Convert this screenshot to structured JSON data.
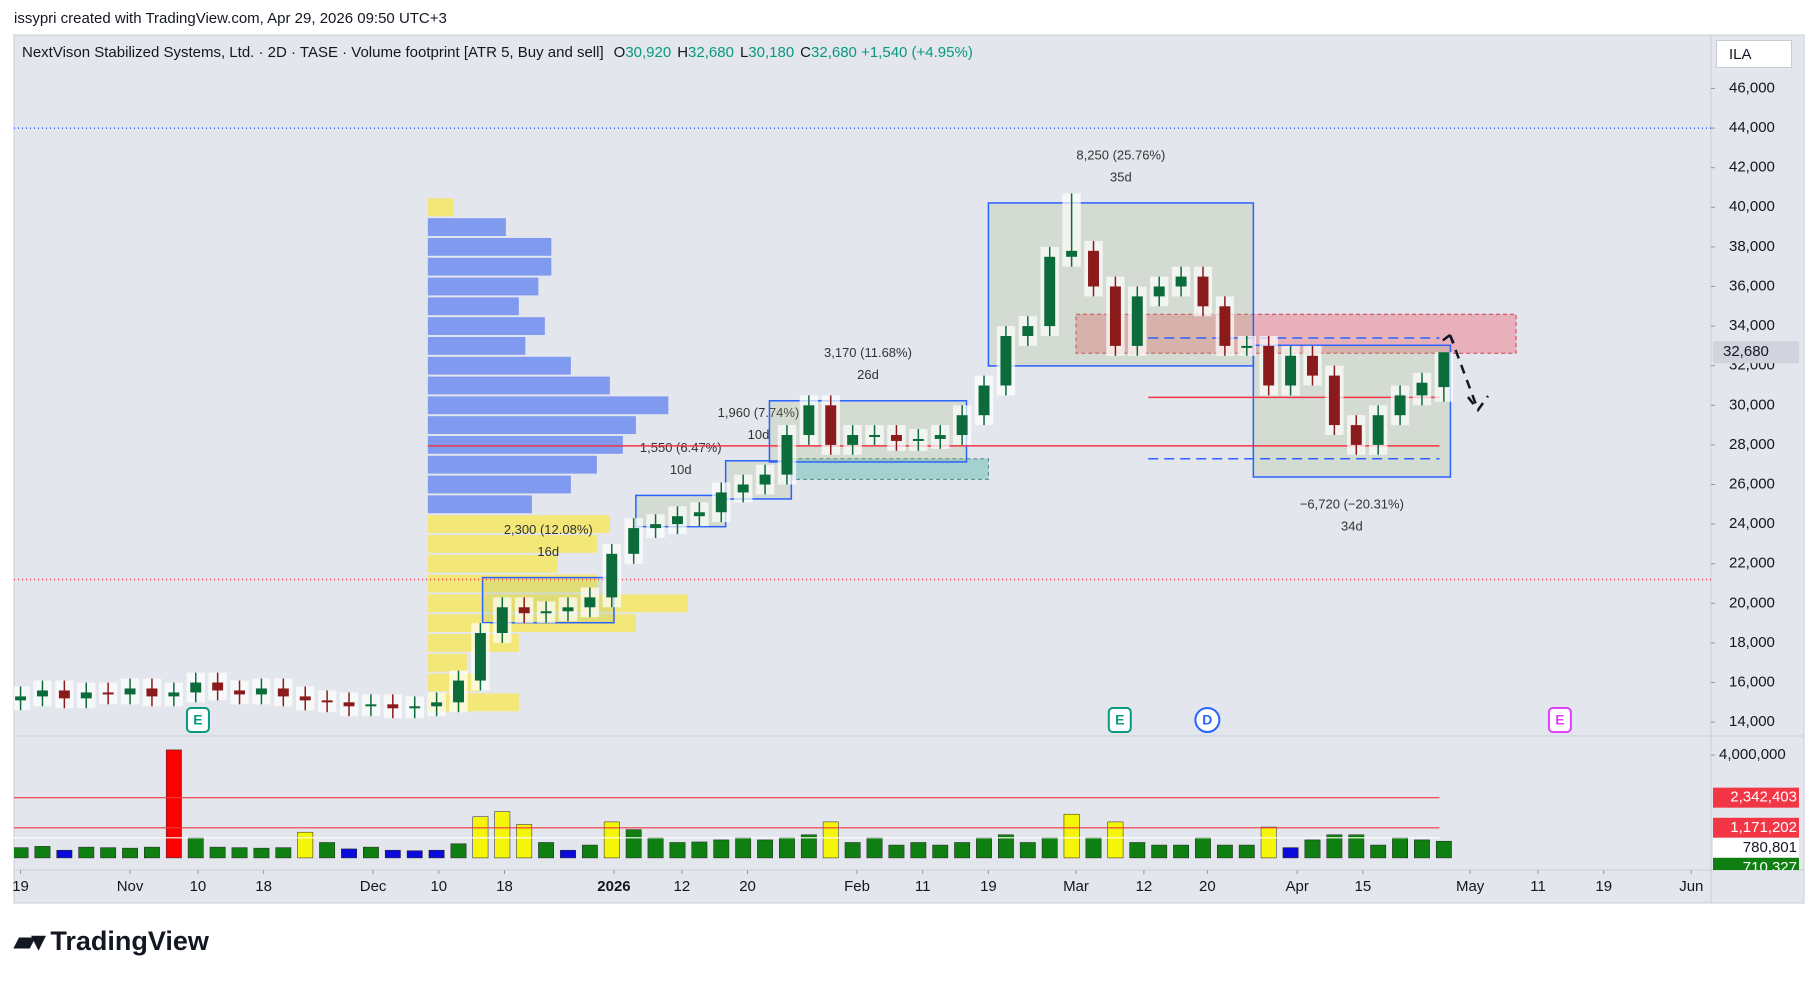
{
  "header": {
    "credit": "issypri created with TradingView.com, Apr 29, 2026 09:50 UTC+3",
    "logo": "TradingView"
  },
  "chart_data": {
    "type": "candlestick",
    "title": "NextVison Stabilized Systems, Ltd. · 2D · TASE · Volume footprint [ATR 5, Buy and sell]",
    "ohlc": [
      {
        "label": "O",
        "value": 30920,
        "text": "30,920"
      },
      {
        "label": "H",
        "value": 32680,
        "text": "32,680"
      },
      {
        "label": "L",
        "value": 30180,
        "text": "30,180"
      },
      {
        "label": "C",
        "value": 32680,
        "text": "32,680"
      }
    ],
    "change": "+1,540 (+4.95%)",
    "currency": "ILA",
    "last_price_label": "32,680",
    "up_color": "#0b6b3a",
    "down_color": "#8b1a1a",
    "candles": {
      "open": [
        15100,
        15300,
        15600,
        15200,
        15500,
        15400,
        15700,
        15300,
        15500,
        16000,
        15600,
        15400,
        15700,
        15300,
        15100,
        15000,
        14800,
        14900,
        14700,
        14800,
        15000,
        16100,
        18500,
        19800,
        19500,
        19600,
        19800,
        20300,
        22500,
        23800,
        24000,
        24400,
        24600,
        25600,
        26000,
        26500,
        28500,
        30000,
        28000,
        28500,
        28500,
        28200,
        28300,
        28500,
        29500,
        31000,
        33500,
        34000,
        37500,
        37800,
        36000,
        33000,
        35500,
        36000,
        36500,
        35000,
        33000,
        33000,
        31000,
        32500,
        31500,
        29000,
        28000,
        29500,
        30500,
        30920
      ],
      "high": [
        15800,
        16100,
        16100,
        16000,
        16000,
        16200,
        16200,
        16000,
        16500,
        16500,
        16100,
        16200,
        16200,
        15800,
        15600,
        15500,
        15400,
        15400,
        15300,
        15500,
        16600,
        19000,
        20300,
        20300,
        20100,
        20300,
        20800,
        23000,
        24300,
        24500,
        24900,
        25100,
        26100,
        26500,
        27000,
        29000,
        30500,
        30500,
        29000,
        29000,
        29000,
        28800,
        29000,
        30000,
        31500,
        34000,
        34500,
        38000,
        40700,
        38300,
        36500,
        36000,
        36500,
        37000,
        37000,
        35500,
        33500,
        33500,
        33000,
        33000,
        32000,
        29500,
        30000,
        31000,
        31640,
        32680
      ],
      "low": [
        14600,
        14800,
        14700,
        14700,
        14900,
        14900,
        14800,
        14800,
        15000,
        15100,
        14900,
        14900,
        14800,
        14600,
        14500,
        14300,
        14300,
        14200,
        14200,
        14300,
        14500,
        15600,
        18000,
        19000,
        19000,
        19100,
        19300,
        19800,
        22000,
        23300,
        23500,
        23900,
        24100,
        25100,
        25500,
        26000,
        28000,
        27500,
        27500,
        28000,
        27700,
        27700,
        27800,
        28000,
        29000,
        30500,
        33000,
        33500,
        37000,
        35500,
        32500,
        32500,
        35000,
        35500,
        34500,
        32500,
        32500,
        30500,
        30500,
        31000,
        28500,
        27500,
        27500,
        29000,
        30000,
        30180
      ],
      "close": [
        15300,
        15600,
        15200,
        15500,
        15400,
        15700,
        15300,
        15500,
        16000,
        15600,
        15400,
        15700,
        15300,
        15100,
        15000,
        14800,
        14900,
        14700,
        14800,
        15000,
        16100,
        18500,
        19800,
        19500,
        19600,
        19800,
        20300,
        22500,
        23800,
        24000,
        24400,
        24600,
        25600,
        26000,
        26500,
        28500,
        30000,
        28000,
        28500,
        28500,
        28200,
        28300,
        28500,
        29500,
        31000,
        33500,
        34000,
        37500,
        37800,
        36000,
        33000,
        35500,
        36000,
        36500,
        35000,
        33000,
        33000,
        31000,
        32500,
        31500,
        29000,
        28000,
        29500,
        30500,
        31140,
        32680
      ]
    },
    "volume": [
      400000,
      450000,
      300000,
      420000,
      400000,
      380000,
      420000,
      4200000,
      800000,
      420000,
      400000,
      380000,
      400000,
      1000000,
      600000,
      350000,
      420000,
      300000,
      280000,
      300000,
      550000,
      1600000,
      1800000,
      1300000,
      600000,
      300000,
      500000,
      1400000,
      1100000,
      800000,
      600000,
      620000,
      700000,
      800000,
      700000,
      800000,
      900000,
      1400000,
      600000,
      800000,
      500000,
      600000,
      500000,
      600000,
      800000,
      900000,
      600000,
      800000,
      1700000,
      800000,
      1400000,
      600000,
      500000,
      500000,
      800000,
      500000,
      500000,
      1200000,
      400000,
      700000,
      900000,
      900000,
      500000,
      800000,
      700000,
      650000
    ],
    "volume_colors": [
      "#0f7f12",
      "#0f7f12",
      "#0a0adc",
      "#0f7f12",
      "#0f7f12",
      "#0f7f12",
      "#0f7f12",
      "#ff0000",
      "#0f7f12",
      "#0f7f12",
      "#0f7f12",
      "#0f7f12",
      "#0f7f12",
      "#f5f50a",
      "#0f7f12",
      "#0a0adc",
      "#0f7f12",
      "#0a0adc",
      "#0a0adc",
      "#0a0adc",
      "#0f7f12",
      "#f5f50a",
      "#f5f50a",
      "#f5f50a",
      "#0f7f12",
      "#0a0adc",
      "#0f7f12",
      "#f5f50a",
      "#0f7f12",
      "#0f7f12",
      "#0f7f12",
      "#0f7f12",
      "#0f7f12",
      "#0f7f12",
      "#0f7f12",
      "#0f7f12",
      "#0f7f12",
      "#f5f50a",
      "#0f7f12",
      "#0f7f12",
      "#0f7f12",
      "#0f7f12",
      "#0f7f12",
      "#0f7f12",
      "#0f7f12",
      "#0f7f12",
      "#0f7f12",
      "#0f7f12",
      "#f5f50a",
      "#0f7f12",
      "#f5f50a",
      "#0f7f12",
      "#0f7f12",
      "#0f7f12",
      "#0f7f12",
      "#0f7f12",
      "#0f7f12",
      "#f5f50a",
      "#0a0adc",
      "#0f7f12",
      "#0f7f12",
      "#0f7f12",
      "#0f7f12",
      "#0f7f12",
      "#0f7f12",
      "#0f7f12"
    ],
    "xlim": [
      -0.3,
      77.2
    ],
    "xticks": [
      {
        "value": 0,
        "label": "19"
      },
      {
        "value": 5,
        "label": "Nov"
      },
      {
        "value": 8.1,
        "label": "10"
      },
      {
        "value": 11.1,
        "label": "18"
      },
      {
        "value": 16.1,
        "label": "Dec"
      },
      {
        "value": 19.1,
        "label": "10"
      },
      {
        "value": 22.1,
        "label": "18"
      },
      {
        "value": 27.1,
        "label": "2026"
      },
      {
        "value": 30.2,
        "label": "12"
      },
      {
        "value": 33.2,
        "label": "20"
      },
      {
        "value": 38.2,
        "label": "Feb"
      },
      {
        "value": 41.2,
        "label": "11"
      },
      {
        "value": 44.2,
        "label": "19"
      },
      {
        "value": 48.2,
        "label": "Mar"
      },
      {
        "value": 51.3,
        "label": "12"
      },
      {
        "value": 54.2,
        "label": "20"
      },
      {
        "value": 58.3,
        "label": "Apr"
      },
      {
        "value": 61.3,
        "label": "15"
      },
      {
        "value": 66.2,
        "label": "May"
      },
      {
        "value": 69.3,
        "label": "11"
      },
      {
        "value": 72.3,
        "label": "19"
      },
      {
        "value": 76.3,
        "label": "Jun"
      }
    ],
    "ylim": [
      13300,
      48700
    ],
    "yticks": [
      {
        "value": 14000,
        "label": "14,000"
      },
      {
        "value": 16000,
        "label": "16,000"
      },
      {
        "value": 18000,
        "label": "18,000"
      },
      {
        "value": 20000,
        "label": "20,000"
      },
      {
        "value": 22000,
        "label": "22,000"
      },
      {
        "value": 24000,
        "label": "24,000"
      },
      {
        "value": 26000,
        "label": "26,000"
      },
      {
        "value": 28000,
        "label": "28,000"
      },
      {
        "value": 30000,
        "label": "30,000"
      },
      {
        "value": 32000,
        "label": "32,000"
      },
      {
        "value": 34000,
        "label": "34,000"
      },
      {
        "value": 36000,
        "label": "36,000"
      },
      {
        "value": 38000,
        "label": "38,000"
      },
      {
        "value": 40000,
        "label": "40,000"
      },
      {
        "value": 42000,
        "label": "42,000"
      },
      {
        "value": 44000,
        "label": "44,000"
      },
      {
        "value": 46000,
        "label": "46,000"
      }
    ],
    "volume_ylim": [
      -470000,
      4740000
    ],
    "volume_yticks": [
      {
        "value": 4000000,
        "label": "4,000,000"
      }
    ],
    "volume_ma": [
      {
        "value": 2342403,
        "label": "2,342,403",
        "color": "#f23645"
      },
      {
        "value": 1171202,
        "label": "1,171,202",
        "color": "#f23645"
      },
      {
        "value": 780801,
        "label": "780,801",
        "color": "#ffffff"
      },
      {
        "value": 710327,
        "label": "710,327",
        "color": "#0f7f12"
      }
    ],
    "profile": {
      "prices": [
        40000,
        39000,
        38000,
        37000,
        36000,
        35000,
        34000,
        33000,
        32000,
        31000,
        30000,
        29000,
        28000,
        27000,
        26000,
        25000,
        24000,
        23000,
        22000,
        21000,
        20000,
        19000,
        18000,
        17000,
        16000,
        15000
      ],
      "values": [
        20,
        60,
        95,
        95,
        85,
        70,
        90,
        75,
        110,
        140,
        185,
        160,
        150,
        130,
        110,
        80,
        140,
        130,
        100,
        130,
        200,
        160,
        70,
        30,
        40,
        70
      ],
      "colors": [
        "#f5e663",
        "#6f8cf0",
        "#6f8cf0",
        "#6f8cf0",
        "#6f8cf0",
        "#6f8cf0",
        "#6f8cf0",
        "#6f8cf0",
        "#6f8cf0",
        "#6f8cf0",
        "#6f8cf0",
        "#6f8cf0",
        "#6f8cf0",
        "#6f8cf0",
        "#6f8cf0",
        "#6f8cf0",
        "#f5e663",
        "#f5e663",
        "#f5e663",
        "#f5e663",
        "#f5e663",
        "#f5e663",
        "#f5e663",
        "#f5e663",
        "#f5e663",
        "#f5e663"
      ]
    },
    "ranges": [
      {
        "label": "2,300 (12.08%)",
        "days": "16d",
        "bars": [
          21.1,
          27.1
        ],
        "range": [
          19020,
          21300
        ],
        "position": "above"
      },
      {
        "label": "1,550 (6.47%)",
        "days": "10d",
        "bars": [
          28.1,
          32.2
        ],
        "range": [
          23870,
          25450
        ],
        "position": "above"
      },
      {
        "label": "1,960 (7.74%)",
        "days": "10d",
        "bars": [
          32.2,
          35.2
        ],
        "range": [
          25270,
          27200
        ],
        "position": "above"
      },
      {
        "label": "3,170 (11.68%)",
        "days": "26d",
        "bars": [
          34.2,
          43.2
        ],
        "range": [
          27140,
          30230
        ],
        "position": "above"
      },
      {
        "label": "8,250 (25.76%)",
        "days": "35d",
        "bars": [
          44.2,
          56.3
        ],
        "range": [
          31990,
          40220
        ],
        "position": "above"
      },
      {
        "label": "−6,720 (−20.31%)",
        "days": "34d",
        "bars": [
          56.3,
          65.3
        ],
        "range": [
          26380,
          33030
        ],
        "position": "below"
      }
    ],
    "zones": [
      {
        "bars": [
          48.2,
          68.3
        ],
        "range": [
          32630,
          34600
        ],
        "color": "rgba(242,54,69,0.3)",
        "border": "#d04050"
      },
      {
        "bars": [
          35.2,
          44.2
        ],
        "range": [
          26260,
          27300
        ],
        "color": "rgba(0,150,136,0.28)",
        "border": "#4a8a80"
      }
    ],
    "lines": [
      {
        "price": 44000,
        "color": "#2962ff",
        "dash": "1 3"
      },
      {
        "price": 21200,
        "color": "#f23645",
        "dash": "1 3"
      },
      {
        "price": 27950,
        "bars": [
          18.6,
          64.8
        ],
        "color": "#f23645",
        "dash": ""
      },
      {
        "price": 30400,
        "bars": [
          51.5,
          64.8
        ],
        "color": "#f23645",
        "dash": ""
      },
      {
        "price": 33400,
        "bars": [
          51.5,
          64.8
        ],
        "color": "#2962ff",
        "dash": "10 6"
      },
      {
        "price": 27300,
        "bars": [
          51.5,
          64.8
        ],
        "color": "#2962ff",
        "dash": "10 6"
      }
    ],
    "events": [
      {
        "label": "E",
        "bar": 8.1,
        "color": "#089981"
      },
      {
        "label": "E",
        "bar": 50.2,
        "color": "#089981"
      },
      {
        "label": "D",
        "bar": 54.2,
        "color": "#2962ff"
      },
      {
        "label": "E",
        "bar": 70.3,
        "color": "#e040fb"
      }
    ]
  }
}
